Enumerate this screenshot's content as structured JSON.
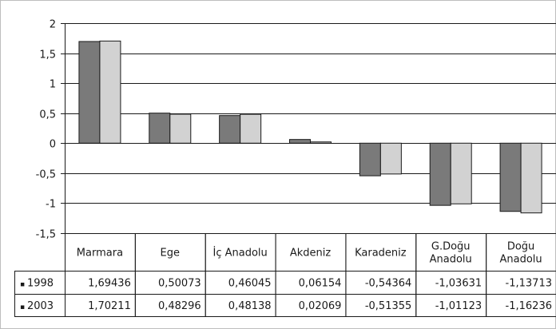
{
  "chart_data": {
    "type": "bar",
    "categories": [
      [
        "Marmara"
      ],
      [
        "Ege"
      ],
      [
        "İç Anadolu"
      ],
      [
        "Akdeniz"
      ],
      [
        "Karadeniz"
      ],
      [
        "G.Doğu",
        "Anadolu"
      ],
      [
        "Doğu",
        "Anadolu"
      ]
    ],
    "series": [
      {
        "name": "1998",
        "color": "#7a7a7a",
        "values": [
          1.69436,
          0.50073,
          0.46045,
          0.06154,
          -0.54364,
          -1.03631,
          -1.13713
        ],
        "labels": [
          "1,69436",
          "0,50073",
          "0,46045",
          "0,06154",
          "-0,54364",
          "-1,03631",
          "-1,13713"
        ]
      },
      {
        "name": "2003",
        "color": "#d2d2d2",
        "values": [
          1.70211,
          0.48296,
          0.48138,
          0.02069,
          -0.51355,
          -1.01123,
          -1.16236
        ],
        "labels": [
          "1,70211",
          "0,48296",
          "0,48138",
          "0,02069",
          "-0,51355",
          "-1,01123",
          "-1,16236"
        ]
      }
    ],
    "ylim": [
      -1.5,
      2
    ],
    "yticks": [
      {
        "value": 2,
        "label": "2"
      },
      {
        "value": 1.5,
        "label": "1,5"
      },
      {
        "value": 1,
        "label": "1"
      },
      {
        "value": 0.5,
        "label": "0,5"
      },
      {
        "value": 0,
        "label": "0"
      },
      {
        "value": -0.5,
        "label": "-0,5"
      },
      {
        "value": -1,
        "label": "-1"
      },
      {
        "value": -1.5,
        "label": "-1,5"
      }
    ],
    "grid": true,
    "legend": "data-table-rows",
    "legend_marker": "▪"
  }
}
